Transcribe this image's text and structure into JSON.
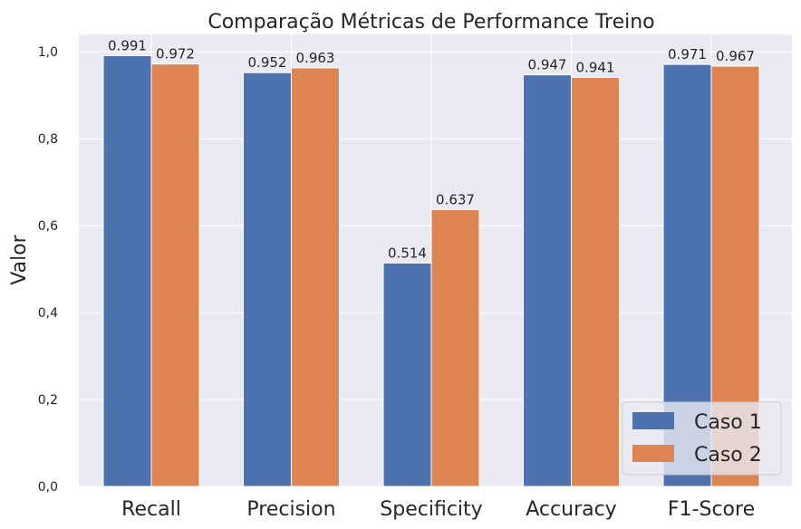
{
  "chart_data": {
    "type": "bar",
    "title": "Comparação Métricas de Performance Treino",
    "xlabel": "",
    "ylabel": "Valor",
    "categories": [
      "Recall",
      "Precision",
      "Specificity",
      "Accuracy",
      "F1-Score"
    ],
    "series": [
      {
        "name": "Caso 1",
        "color": "#4C72B0",
        "values": [
          0.991,
          0.952,
          0.514,
          0.947,
          0.971
        ],
        "labels": [
          "0.991",
          "0.952",
          "0.514",
          "0.947",
          "0.971"
        ]
      },
      {
        "name": "Caso 2",
        "color": "#DD8452",
        "values": [
          0.972,
          0.963,
          0.637,
          0.941,
          0.967
        ],
        "labels": [
          "0.972",
          "0.963",
          "0.637",
          "0.941",
          "0.967"
        ]
      }
    ],
    "ylim": [
      0,
      1.04
    ],
    "yticks": [
      0,
      0.2,
      0.4,
      0.6,
      0.8,
      1.0
    ],
    "ytick_labels": [
      "0,0",
      "0,2",
      "0,4",
      "0,6",
      "0,8",
      "1,0"
    ],
    "grid": true,
    "legend_position": "bottom-right",
    "background": "#EAEAF2"
  }
}
